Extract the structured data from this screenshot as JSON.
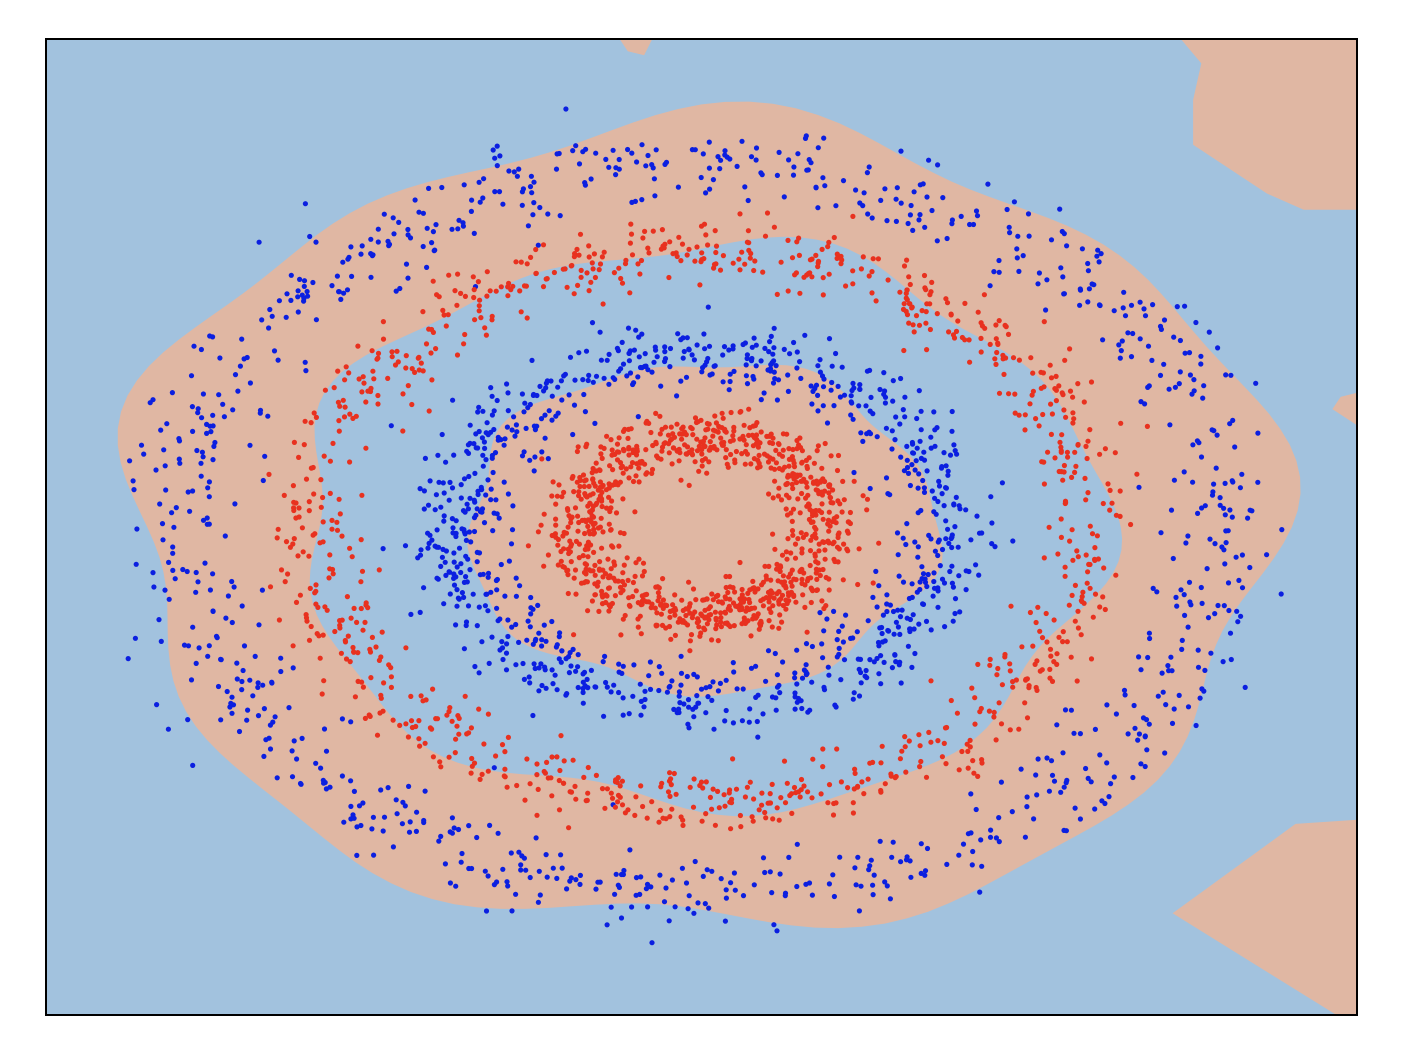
{
  "chart_data": {
    "type": "scatter",
    "title": "",
    "xlabel": "",
    "ylabel": "",
    "xlim": [
      -1.6,
      1.6
    ],
    "ylim": [
      -1.2,
      1.2
    ],
    "grid": false,
    "axis_ticks": false,
    "legend": "none",
    "background": {
      "type": "decision-regions",
      "class_0_color": "#a2c2de",
      "class_1_color": "#e0b7a3"
    },
    "series": [
      {
        "class": 0,
        "color": "#0b1fe0",
        "shape": "ring",
        "radius_x": 1.27,
        "radius_y": 0.9,
        "noise": 0.05,
        "count": 900
      },
      {
        "class": 1,
        "color": "#e8311f",
        "shape": "ring",
        "radius_x": 0.95,
        "radius_y": 0.68,
        "noise": 0.04,
        "count": 950
      },
      {
        "class": 0,
        "color": "#0b1fe0",
        "shape": "ring",
        "radius_x": 0.6,
        "radius_y": 0.42,
        "noise": 0.045,
        "count": 900
      },
      {
        "class": 1,
        "color": "#e8311f",
        "shape": "ring",
        "radius_x": 0.3,
        "radius_y": 0.22,
        "noise": 0.035,
        "count": 950
      }
    ],
    "region_boundaries_r": [
      0.17,
      0.45,
      0.77,
      1.1
    ]
  }
}
